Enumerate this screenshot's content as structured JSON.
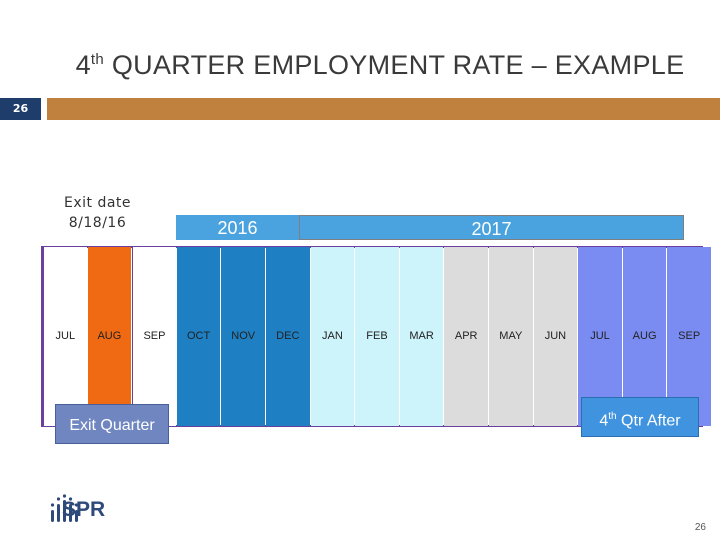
{
  "title": {
    "prefix": "4",
    "superscript": "th",
    "rest": " QUARTER EMPLOYMENT RATE – EXAMPLE"
  },
  "slide_number": "26",
  "exit_date": {
    "line1": "Exit date",
    "line2": "8/18/16"
  },
  "years": {
    "y2016": "2016",
    "y2017": "2017"
  },
  "months": [
    {
      "label": "JUL",
      "bg": "#ffffff"
    },
    {
      "label": "AUG",
      "bg": "#f06a14"
    },
    {
      "label": "SEP",
      "bg": "#ffffff"
    },
    {
      "label": "OCT",
      "bg": "#1e7fc2"
    },
    {
      "label": "NOV",
      "bg": "#1e7fc2"
    },
    {
      "label": "DEC",
      "bg": "#1e7fc2"
    },
    {
      "label": "JAN",
      "bg": "#cdf3fb"
    },
    {
      "label": "FEB",
      "bg": "#cdf3fb"
    },
    {
      "label": "MAR",
      "bg": "#cdf3fb"
    },
    {
      "label": "APR",
      "bg": "#dcdcdc"
    },
    {
      "label": "MAY",
      "bg": "#dcdcdc"
    },
    {
      "label": "JUN",
      "bg": "#dcdcdc"
    },
    {
      "label": "JUL",
      "bg": "#7a8cf2"
    },
    {
      "label": "AUG",
      "bg": "#7a8cf2"
    },
    {
      "label": "SEP",
      "bg": "#7a8cf2"
    }
  ],
  "exit_quarter_label": "Exit Quarter",
  "after_label": {
    "prefix": "4",
    "superscript": "th",
    "rest": " Qtr After"
  },
  "logo": {
    "text": "SPR",
    "icon": "spr-logo-icon"
  },
  "page_number": "26",
  "colors": {
    "accent_bar": "#c0813f",
    "slide_box": "#1f3d6b",
    "year_bar": "#4aa3df",
    "timeline_border": "#6a3f9f"
  }
}
